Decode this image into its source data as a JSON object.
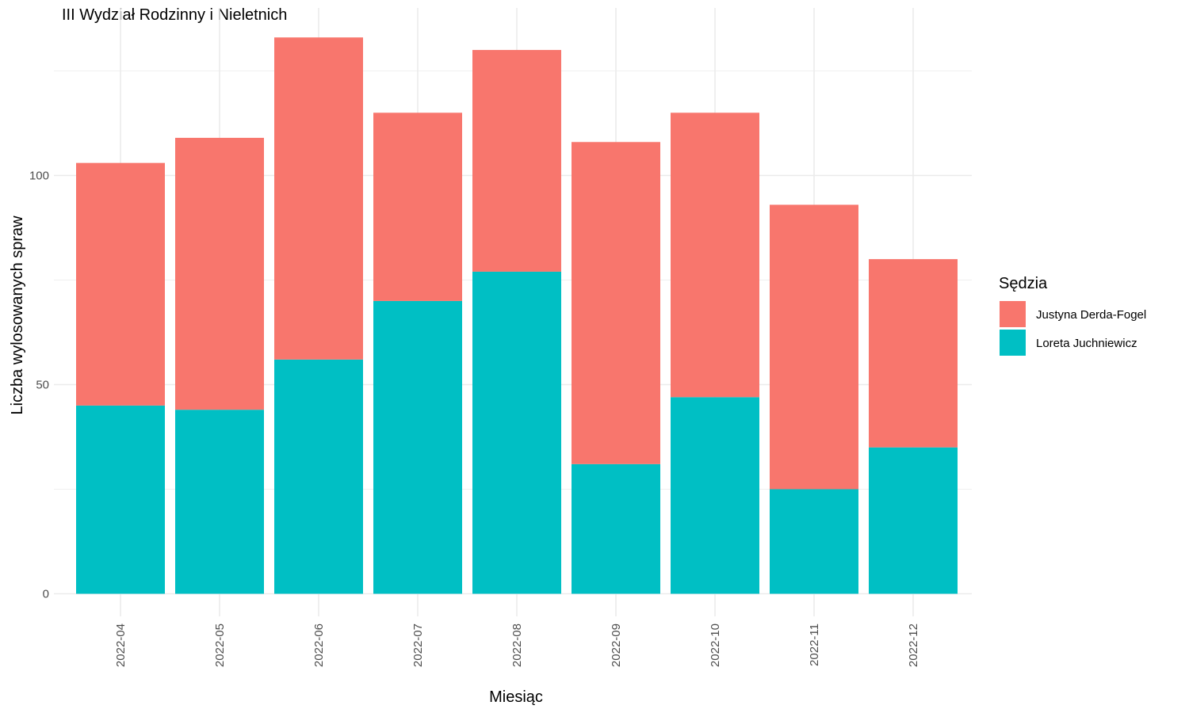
{
  "chart_data": {
    "type": "bar",
    "stacked": true,
    "title": "III Wydział Rodzinny i Nieletnich",
    "xlabel": "Miesiąc",
    "ylabel": "Liczba wylosowanych spraw",
    "categories": [
      "2022-04",
      "2022-05",
      "2022-06",
      "2022-07",
      "2022-08",
      "2022-09",
      "2022-10",
      "2022-11",
      "2022-12"
    ],
    "series": [
      {
        "name": "Loreta Juchniewicz",
        "color": "#00BFC4",
        "values": [
          45,
          44,
          56,
          70,
          77,
          31,
          47,
          25,
          35
        ]
      },
      {
        "name": "Justyna Derda-Fogel",
        "color": "#F8766D",
        "values": [
          58,
          65,
          77,
          45,
          53,
          77,
          68,
          68,
          45
        ]
      }
    ],
    "ylim": [
      0,
      140
    ],
    "yticks": [
      0,
      50,
      100
    ],
    "grid": true,
    "legend": {
      "title": "Sędzia",
      "position": "right",
      "order": [
        "Justyna Derda-Fogel",
        "Loreta Juchniewicz"
      ]
    }
  }
}
